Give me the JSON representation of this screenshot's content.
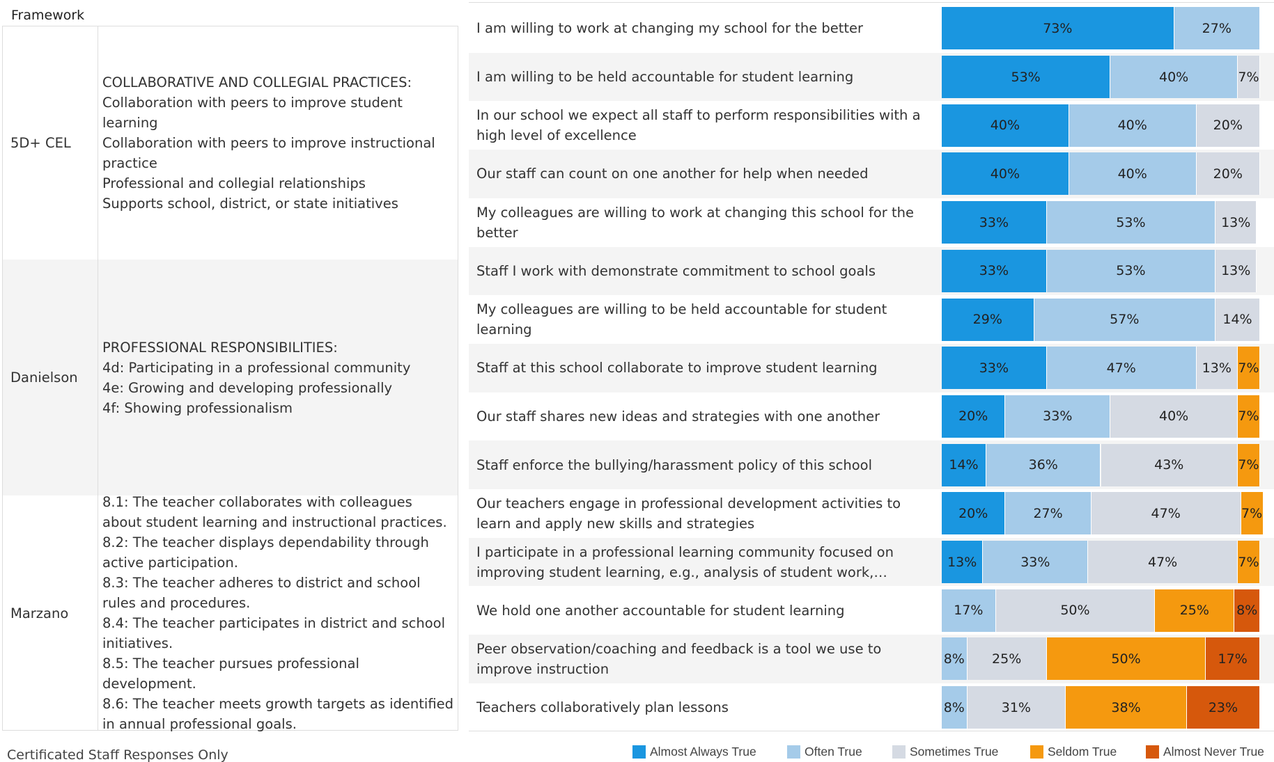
{
  "framework": {
    "header": "Framework",
    "rows": [
      {
        "name": "5D+ CEL",
        "items": [
          "COLLABORATIVE AND COLLEGIAL PRACTICES:",
          "Collaboration with peers to improve student learning",
          "Collaboration with peers to improve instructional practice",
          "Professional and collegial relationships",
          "Supports school, district, or state initiatives"
        ]
      },
      {
        "name": "Danielson",
        "items": [
          "PROFESSIONAL RESPONSIBILITIES:",
          "4d: Participating in a professional community",
          "4e: Growing and developing professionally",
          "4f: Showing professionalism"
        ]
      },
      {
        "name": "Marzano",
        "items": [
          "8.1: The teacher collaborates with colleagues about student learning and instructional practices.",
          "8.2: The teacher displays dependability through active participation.",
          "8.3: The teacher adheres to district and school rules and procedures.",
          "8.4: The teacher participates in district and school initiatives.",
          "8.5: The teacher pursues professional development.",
          "8.6: The teacher meets growth targets as identified in annual professional goals."
        ]
      }
    ]
  },
  "footnote": "Certificated Staff Responses Only",
  "chart_data": {
    "type": "stacked-bar-horizontal",
    "categories": [
      "I am willing to work at changing my school for the better",
      "I am willing to be held accountable for student learning",
      "In our school we expect all staff to perform responsibilities with a high level of excellence",
      "Our staff can count on one another for help when needed",
      "My colleagues are willing to work at changing this school for the better",
      "Staff I work with demonstrate commitment to school goals",
      "My colleagues are willing to be held accountable for student learning",
      "Staff at this school collaborate to improve student learning",
      "Our staff shares new ideas and strategies with one another",
      "Staff enforce the bullying/harassment policy of this school",
      "Our teachers engage in professional development activities to learn and apply new skills and strategies",
      "I participate in a professional learning community focused on improving student learning, e.g., analysis of student work, formativ..",
      "We hold one another accountable for student learning",
      "Peer observation/coaching and feedback is a tool we use to improve instruction",
      "Teachers collaboratively plan lessons"
    ],
    "xlim": [
      0,
      100
    ],
    "series": [
      {
        "name": "Almost Always True",
        "color": "#1a96e0",
        "values": [
          73,
          53,
          40,
          40,
          33,
          33,
          29,
          33,
          20,
          14,
          20,
          13,
          null,
          null,
          null
        ],
        "value_labels": [
          "73%",
          "53%",
          "40%",
          "40%",
          "33%",
          "33%",
          "29%",
          "33%",
          "20%",
          "14%",
          "20%",
          "13%",
          null,
          null,
          null
        ]
      },
      {
        "name": "Often True",
        "color": "#a5cbe9",
        "values": [
          27,
          40,
          40,
          40,
          53,
          53,
          57,
          47,
          33,
          36,
          27,
          33,
          17,
          8,
          8
        ],
        "value_labels": [
          "27%",
          "40%",
          "40%",
          "40%",
          "53%",
          "53%",
          "57%",
          "47%",
          "33%",
          "36%",
          "27%",
          "33%",
          "17%",
          "8%",
          "8%"
        ]
      },
      {
        "name": "Sometimes True",
        "color": "#d5dae3",
        "values": [
          null,
          7,
          20,
          20,
          13,
          13,
          14,
          13,
          40,
          43,
          47,
          47,
          50,
          25,
          31
        ],
        "value_labels": [
          null,
          "7%",
          "20%",
          "20%",
          "13%",
          "13%",
          "14%",
          "13%",
          "40%",
          "43%",
          "47%",
          "47%",
          "50%",
          "25%",
          "31%"
        ]
      },
      {
        "name": "Seldom True",
        "color": "#f5990f",
        "values": [
          null,
          null,
          null,
          null,
          null,
          null,
          null,
          7,
          7,
          7,
          7,
          7,
          25,
          50,
          38
        ],
        "value_labels": [
          null,
          null,
          null,
          null,
          null,
          null,
          null,
          "7%",
          "7%",
          "7%",
          "7%",
          "7%",
          "25%",
          "50%",
          "38%"
        ]
      },
      {
        "name": "Almost Never True",
        "color": "#d6580c",
        "values": [
          null,
          null,
          null,
          null,
          null,
          null,
          null,
          null,
          null,
          null,
          null,
          null,
          8,
          17,
          23
        ],
        "value_labels": [
          null,
          null,
          null,
          null,
          null,
          null,
          null,
          null,
          null,
          null,
          null,
          null,
          "8%",
          "17%",
          "23%"
        ]
      }
    ]
  }
}
